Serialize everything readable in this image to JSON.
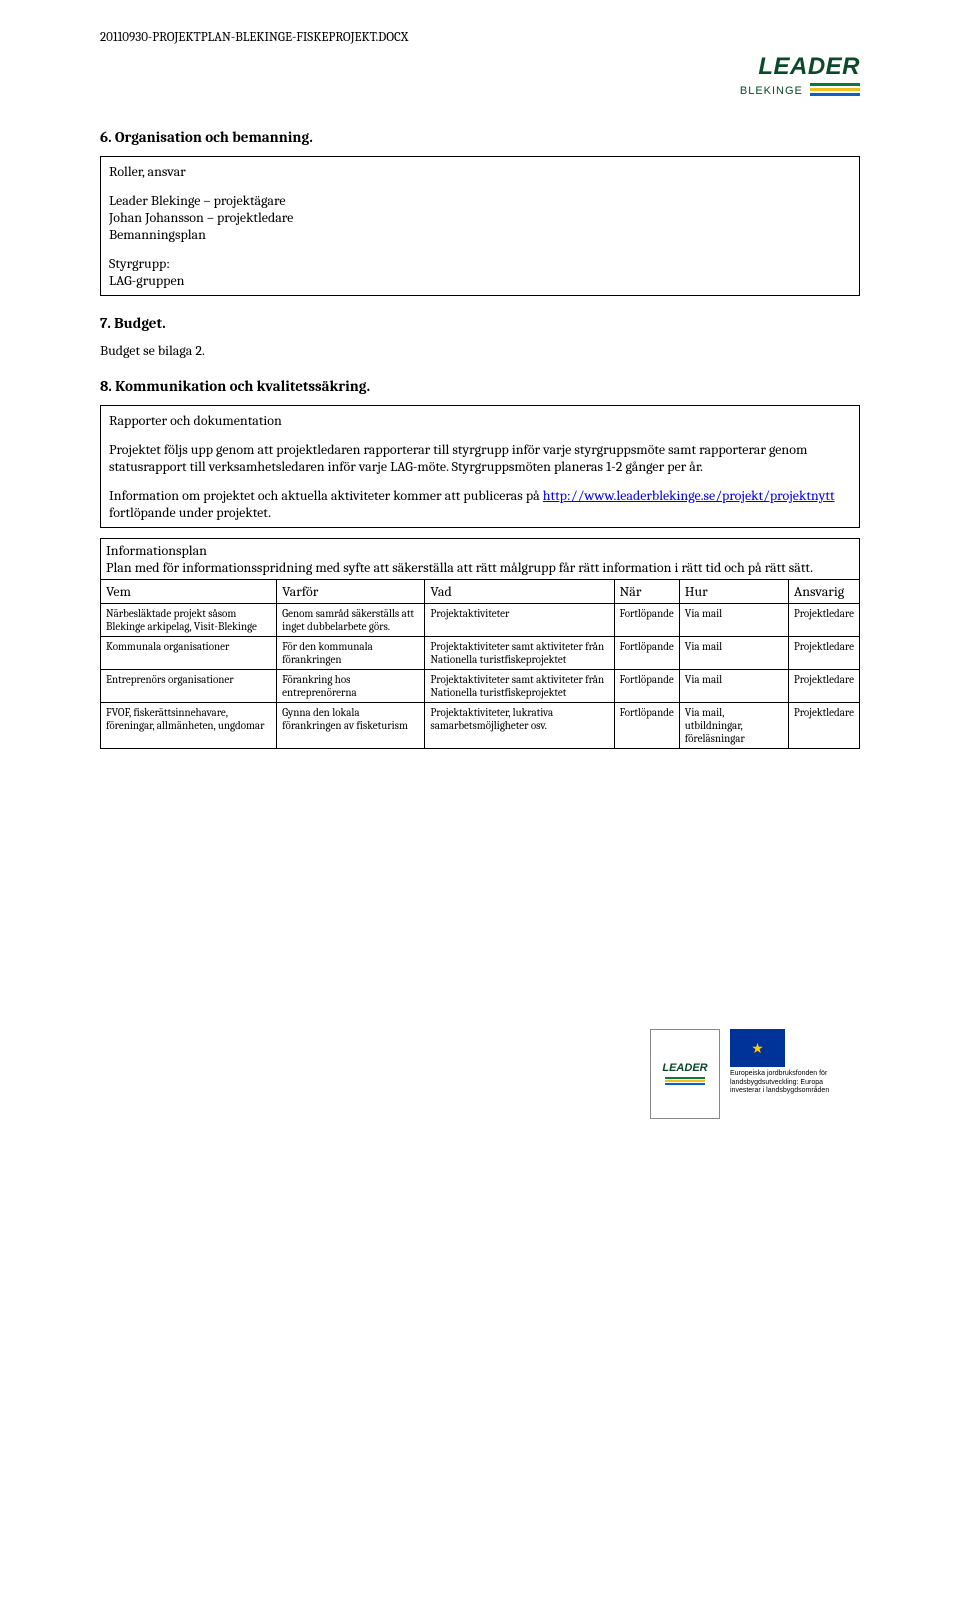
{
  "header": {
    "filename": "20110930-PROJEKTPLAN-BLEKINGE-FISKEPROJEKT.DOCX"
  },
  "logo": {
    "leader_text": "LEADER",
    "blekinge_text": "BLEKINGE"
  },
  "section6": {
    "heading": "6.   Organisation och bemanning.",
    "box": {
      "p1": "Roller, ansvar",
      "p2": "Leader Blekinge – projektägare",
      "p3": "Johan Johansson – projektledare",
      "p4": "Bemanningsplan",
      "p5": "Styrgrupp:",
      "p6": "LAG-gruppen"
    }
  },
  "section7": {
    "heading": "7.   Budget.",
    "text": "Budget se bilaga 2."
  },
  "section8": {
    "heading": "8.   Kommunikation och kvalitetssäkring.",
    "box1": {
      "p1": "Rapporter och dokumentation",
      "p2": "Projektet följs upp genom att projektledaren rapporterar till styrgrupp inför varje styrgruppsmöte samt rapporterar genom statusrapport till verksamhetsledaren inför varje LAG-möte. Styrgruppsmöten planeras 1-2 gånger per år.",
      "p3_pre": "Information om projektet och aktuella aktiviteter kommer att publiceras på ",
      "p3_link": "http://www.leaderblekinge.se/projekt/projektnytt",
      "p3_post": " fortlöpande under projektet."
    },
    "box2": {
      "intro_title": "Informationsplan",
      "intro_text": "Plan med för informationsspridning med syfte att säkerställa att rätt målgrupp får rätt information i rätt tid och på rätt sätt.",
      "headers": [
        "Vem",
        "Varför",
        "Vad",
        "När",
        "Hur",
        "Ansvarig"
      ],
      "rows": [
        [
          "Närbesläktade projekt såsom Blekinge arkipelag, Visit-Blekinge",
          "Genom samråd säkerställs att inget dubbelarbete görs.",
          "Projektaktiviteter",
          "Fortlöpande",
          "Via mail",
          "Projektledare"
        ],
        [
          "Kommunala organisationer",
          "För den kommunala förankringen",
          "Projektaktiviteter samt aktiviteter från Nationella turistfiskeprojektet",
          "Fortlöpande",
          "Via mail",
          "Projektledare"
        ],
        [
          "Entreprenörs organisationer",
          "Förankring hos entreprenörerna",
          "Projektaktiviteter samt aktiviteter från Nationella turistfiskeprojektet",
          "Fortlöpande",
          "Via mail",
          "Projektledare"
        ],
        [
          "FVOF, fiskerättsinnehavare, föreningar, allmänheten, ungdomar",
          "Gynna den lokala förankringen av fisketurism",
          "Projektaktiviteter, lukrativa samarbetsmöjligheter osv.",
          "Fortlöpande",
          "Via mail, utbildningar, föreläsningar",
          "Projektledare"
        ]
      ]
    }
  },
  "footer": {
    "eu_text1": "Europeiska jordbruksfonden för",
    "eu_text2": "landsbygdsutveckling: Europa",
    "eu_text3": "investerar i landsbygdsområden"
  }
}
